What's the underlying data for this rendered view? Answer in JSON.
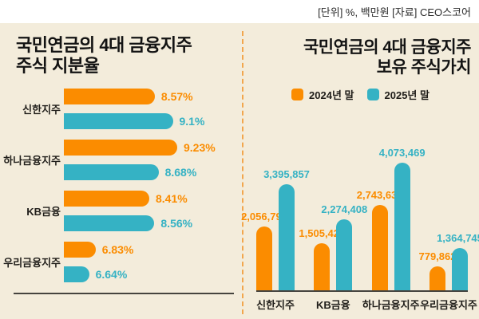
{
  "header": {
    "unit_note": "[단위] %, 백만원 [자료] CEO스코어"
  },
  "colors": {
    "background": "#F3ECDB",
    "header_bg": "#FFFFFF",
    "title_text": "#131313",
    "category_text": "#201E1A",
    "axis_line": "#45433E",
    "divider": "#F2A64D",
    "orange": "#FB8C00",
    "teal": "#35B2C4"
  },
  "left_panel": {
    "title_line1": "국민연금의 4대 금융지주",
    "title_line2": "주식 지분율"
  },
  "right_panel": {
    "title_line1": "국민연금의 4대 금융지주",
    "title_line2": "보유 주식가치"
  },
  "chart_data": [
    {
      "type": "bar",
      "orientation": "horizontal",
      "title": "국민연금의 4대 금융지주 주식 지분율",
      "unit": "%",
      "categories": [
        "신한지주",
        "하나금융지주",
        "KB금융",
        "우리금융지주"
      ],
      "series": [
        {
          "name": "2024년 말",
          "color": "#FB8C00",
          "values": [
            8.57,
            9.23,
            8.41,
            6.83
          ]
        },
        {
          "name": "2025년 말",
          "color": "#35B2C4",
          "values": [
            9.1,
            8.68,
            8.56,
            6.64
          ]
        }
      ],
      "value_suffix": "%",
      "xlim": [
        5.9,
        9.3
      ],
      "grid": false,
      "value_labels": true,
      "legend_position": "none"
    },
    {
      "type": "bar",
      "orientation": "vertical",
      "title": "국민연금의 4대 금융지주 보유 주식가치",
      "unit": "백만원",
      "categories": [
        "신한지주",
        "KB금융",
        "하나금융지주",
        "우리금융지주"
      ],
      "series": [
        {
          "name": "2024년 말",
          "color": "#FB8C00",
          "values": [
            2056793,
            1505424,
            2743633,
            779862
          ]
        },
        {
          "name": "2025년 말",
          "color": "#35B2C4",
          "values": [
            3395857,
            2274408,
            4073469,
            1364745
          ]
        }
      ],
      "ylim": [
        0,
        4200000
      ],
      "grid": false,
      "value_labels": true,
      "legend_position": "top"
    }
  ]
}
